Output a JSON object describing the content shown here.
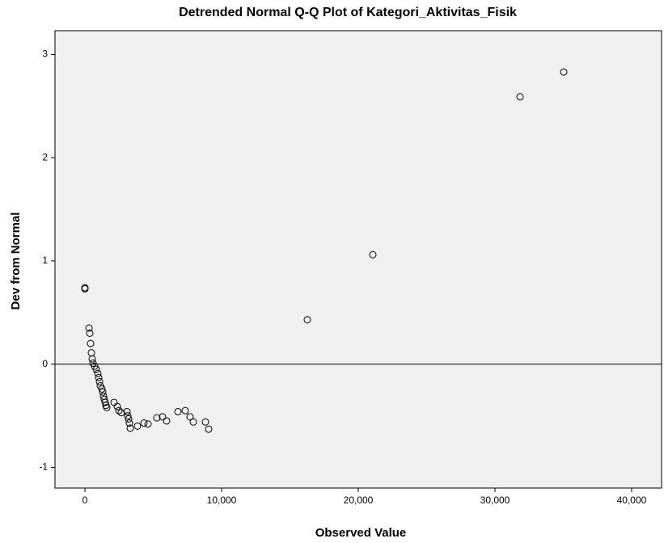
{
  "chart_data": {
    "type": "scatter",
    "title": "Detrended Normal Q-Q Plot of Kategori_Aktivitas_Fisik",
    "xlabel": "Observed Value",
    "ylabel": "Dev from Normal",
    "x": [
      0,
      0,
      300,
      355,
      414,
      473,
      533,
      592,
      710,
      828,
      947,
      1006,
      1065,
      1124,
      1243,
      1302,
      1361,
      1420,
      1479,
      1538,
      1598,
      2130,
      2367,
      2485,
      2663,
      3077,
      3136,
      3195,
      3254,
      3314,
      3846,
      4320,
      4615,
      5266,
      5680,
      5976,
      6805,
      7337,
      7692,
      7929,
      8817,
      9053,
      16272,
      21065,
      31834,
      35030
    ],
    "values": [
      0.74,
      0.73,
      0.35,
      0.3,
      0.2,
      0.11,
      0.05,
      0.01,
      -0.02,
      -0.05,
      -0.09,
      -0.13,
      -0.17,
      -0.21,
      -0.24,
      -0.27,
      -0.31,
      -0.34,
      -0.37,
      -0.4,
      -0.42,
      -0.37,
      -0.41,
      -0.45,
      -0.47,
      -0.46,
      -0.5,
      -0.53,
      -0.57,
      -0.62,
      -0.6,
      -0.57,
      -0.58,
      -0.52,
      -0.51,
      -0.55,
      -0.46,
      -0.45,
      -0.51,
      -0.56,
      -0.56,
      -0.63,
      0.43,
      1.06,
      2.59,
      2.83
    ],
    "color": "#000000",
    "reference_line": 0,
    "xlim": [
      -2190,
      42190
    ],
    "ylim": [
      -1.2,
      3.23
    ],
    "xticks": [
      0,
      {
        "value": 10000,
        "label": "10,000"
      },
      {
        "value": 20000,
        "label": "20,000"
      },
      {
        "value": 30000,
        "label": "30,000"
      },
      {
        "value": 40000,
        "label": "40,000"
      }
    ],
    "yticks": [
      -1,
      0,
      1,
      2,
      3
    ],
    "grid": false
  }
}
